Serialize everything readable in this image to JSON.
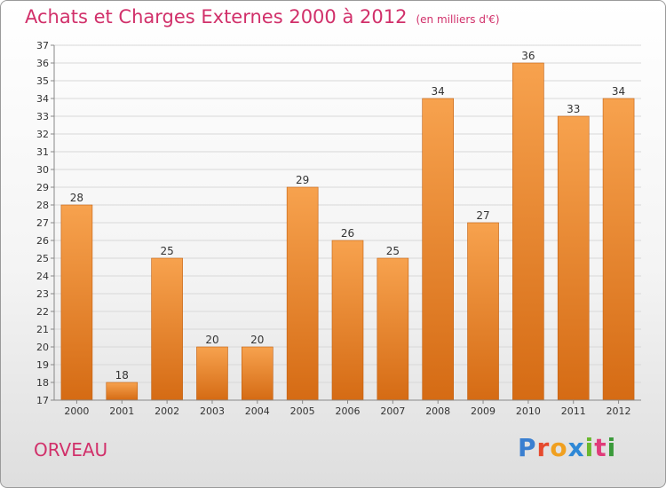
{
  "header": {
    "title": "Achats et Charges Externes 2000 à 2012",
    "subtitle": "(en milliers d'€)"
  },
  "footer": {
    "commune": "ORVEAU",
    "logo": {
      "letters": [
        "P",
        "r",
        "o",
        "x",
        "i",
        "t",
        "i"
      ],
      "colors": [
        "#3a7fd0",
        "#e64a2e",
        "#f0a020",
        "#2e88d6",
        "#6ab82e",
        "#e03c7a",
        "#3a9a3a"
      ]
    }
  },
  "colors": {
    "bar_top": "#f7a24e",
    "bar_bottom": "#d56b14",
    "bar_edge": "#c15f10",
    "title": "#d1306a"
  },
  "chart_data": {
    "type": "bar",
    "categories": [
      "2000",
      "2001",
      "2002",
      "2003",
      "2004",
      "2005",
      "2006",
      "2007",
      "2008",
      "2009",
      "2010",
      "2011",
      "2012"
    ],
    "values": [
      28,
      18,
      25,
      20,
      20,
      29,
      26,
      25,
      34,
      27,
      36,
      33,
      34
    ],
    "ylim": [
      17,
      37
    ],
    "yticks": [
      17,
      18,
      19,
      20,
      21,
      22,
      23,
      24,
      25,
      26,
      27,
      28,
      29,
      30,
      31,
      32,
      33,
      34,
      35,
      36,
      37
    ],
    "grid": true
  }
}
